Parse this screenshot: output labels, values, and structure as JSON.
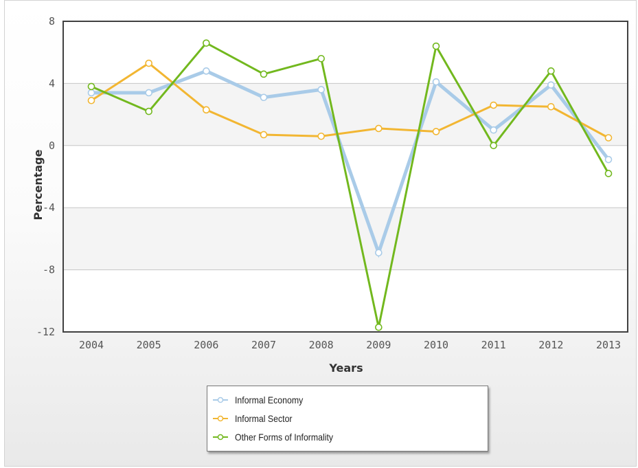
{
  "chart_data": {
    "type": "line",
    "xlabel": "Years",
    "ylabel": "Percentage",
    "ylim": [
      -12,
      8
    ],
    "yticks": [
      8,
      4,
      0,
      -4,
      -8,
      -12
    ],
    "categories": [
      "2004",
      "2005",
      "2006",
      "2007",
      "2008",
      "2009",
      "2010",
      "2011",
      "2012",
      "2013"
    ],
    "grid": true,
    "legend_position": "bottom",
    "series": [
      {
        "name": "Informal Economy",
        "color": "#a9cbe8",
        "values": [
          3.4,
          3.4,
          4.8,
          3.1,
          3.6,
          -6.9,
          4.1,
          1.0,
          3.9,
          -0.9
        ]
      },
      {
        "name": "Informal Sector",
        "color": "#f2b632",
        "values": [
          2.9,
          5.3,
          2.3,
          0.7,
          0.6,
          1.1,
          0.9,
          2.6,
          2.5,
          0.5
        ]
      },
      {
        "name": "Other Forms of Informality",
        "color": "#72b81e",
        "values": [
          3.8,
          2.2,
          6.6,
          4.6,
          5.6,
          -11.7,
          6.4,
          0.0,
          4.8,
          -1.8
        ]
      }
    ]
  }
}
